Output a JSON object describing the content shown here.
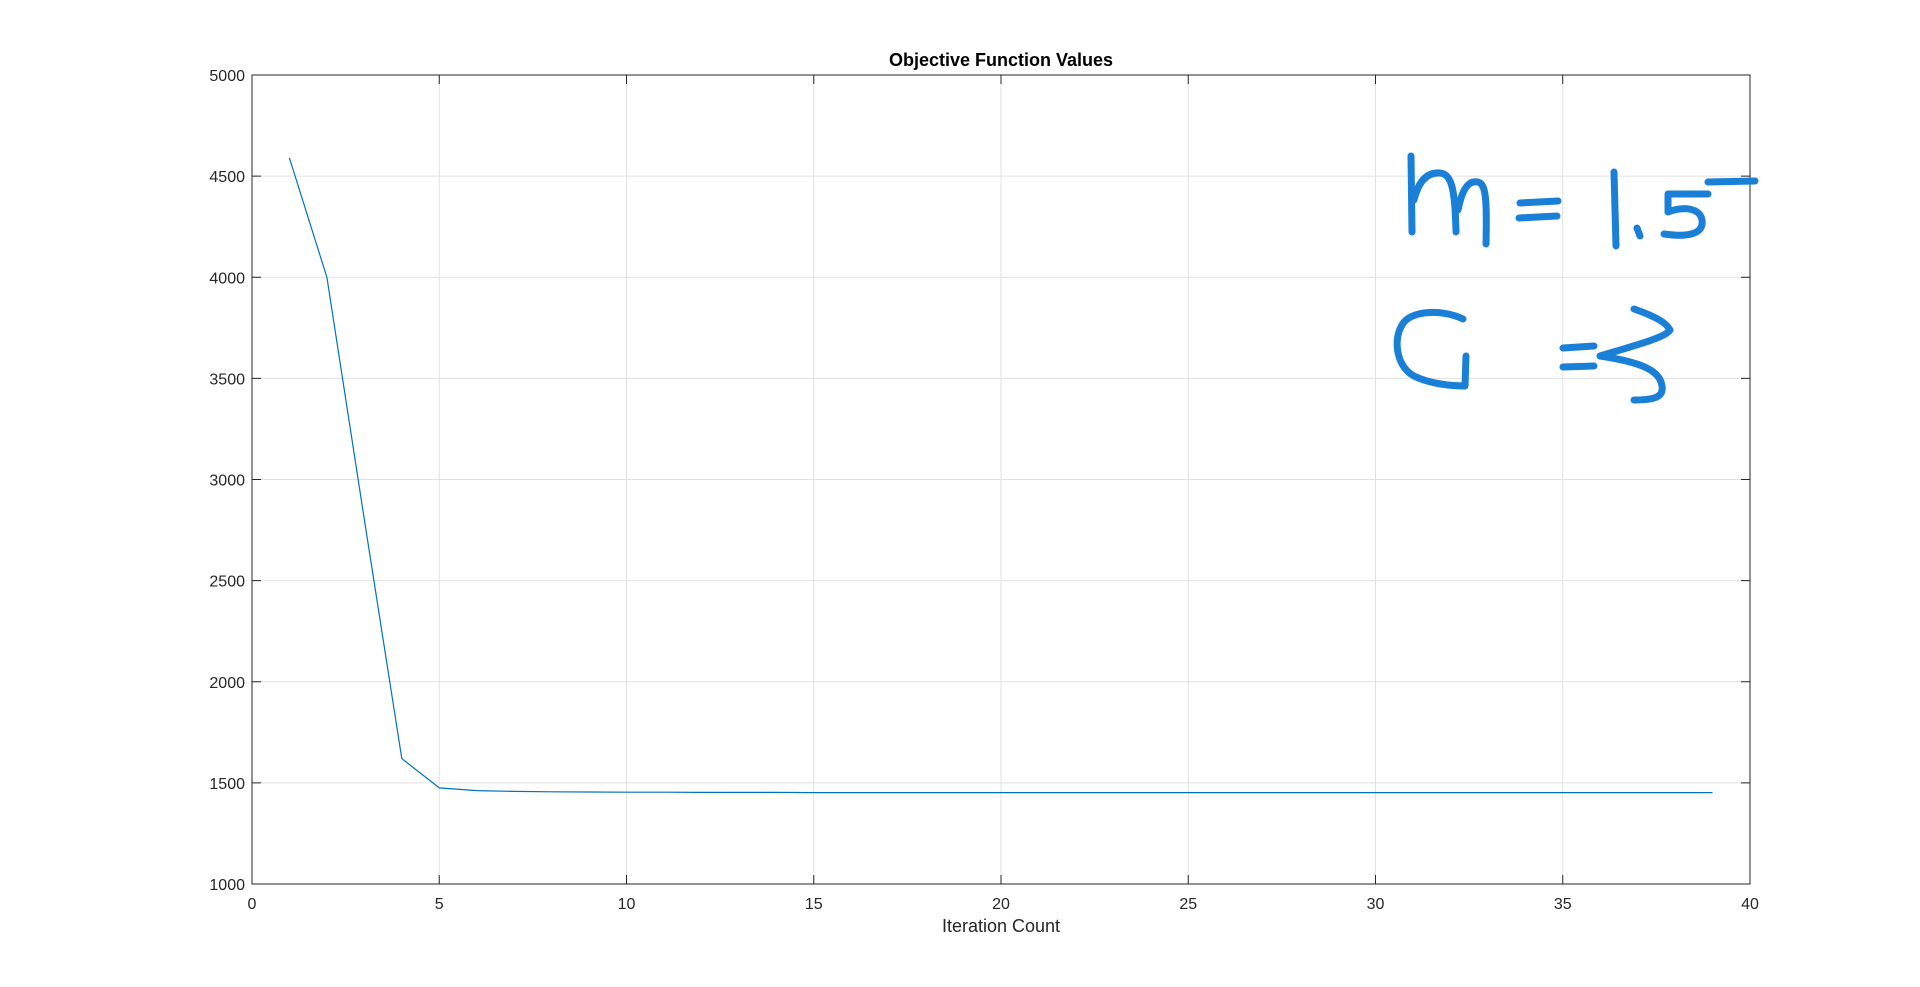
{
  "chart_data": {
    "type": "line",
    "title": "Objective Function Values",
    "xlabel": "Iteration Count",
    "ylabel": "",
    "xlim": [
      0,
      40
    ],
    "ylim": [
      1000,
      5000
    ],
    "xticks": [
      0,
      5,
      10,
      15,
      20,
      25,
      30,
      35,
      40
    ],
    "yticks": [
      1000,
      1500,
      2000,
      2500,
      3000,
      3500,
      4000,
      4500,
      5000
    ],
    "grid": true,
    "series": [
      {
        "color": "#0072BD",
        "x": [
          1,
          2,
          3,
          4,
          5,
          6,
          7,
          8,
          9,
          10,
          11,
          12,
          13,
          14,
          15,
          16,
          17,
          18,
          19,
          20,
          21,
          22,
          23,
          24,
          25,
          26,
          27,
          28,
          29,
          30,
          31,
          32,
          33,
          34,
          35,
          36,
          37,
          38,
          39
        ],
        "values": [
          4590,
          4000,
          2800,
          1620,
          1475,
          1462,
          1458,
          1456,
          1455,
          1454,
          1454,
          1453,
          1453,
          1453,
          1452,
          1452,
          1452,
          1452,
          1452,
          1452,
          1452,
          1452,
          1452,
          1452,
          1452,
          1452,
          1452,
          1452,
          1452,
          1452,
          1452,
          1452,
          1452,
          1452,
          1452,
          1452,
          1452,
          1452,
          1452
        ]
      }
    ]
  },
  "annotation": {
    "text": "m = 1.5  C = 3",
    "color": "#1a7fd6"
  }
}
